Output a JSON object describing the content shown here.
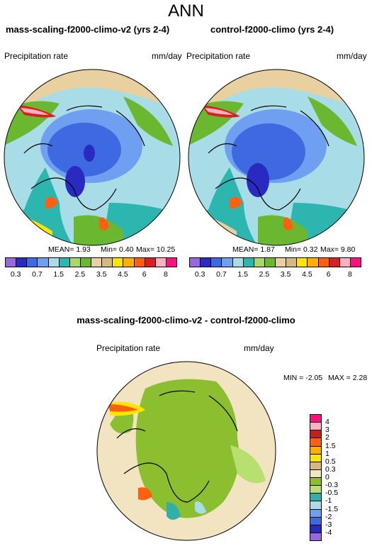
{
  "figure": {
    "title": "ANN"
  },
  "panels": [
    {
      "title": "mass-scaling-f2000-climo-v2 (yrs 2-4)",
      "variable": "Precipitation rate",
      "units": "mm/day",
      "stats": {
        "mean": "MEAN=  1.93",
        "min": "Min=  0.40",
        "max": "Max=  10.25"
      }
    },
    {
      "title": "control-f2000-climo (yrs 2-4)",
      "variable": "Precipitation rate",
      "units": "mm/day",
      "stats": {
        "mean": "MEAN=  1.87",
        "min": "Min=  0.32",
        "max": "Max=  9.80"
      }
    },
    {
      "title": "mass-scaling-f2000-climo-v2 - control-f2000-climo",
      "variable": "Precipitation rate",
      "units": "mm/day",
      "stats": {
        "min": "MIN = -2.05",
        "max": "MAX =  2.28"
      }
    }
  ],
  "chart_data": [
    {
      "type": "heatmap",
      "projection": "north-polar-stereographic",
      "title": "mass-scaling-f2000-climo-v2 (yrs 2-4)",
      "variable": "Precipitation rate",
      "units": "mm/day",
      "mean": 1.93,
      "min": 0.4,
      "max": 10.25,
      "colorbar_levels": [
        "0.3",
        "0.7",
        "1.5",
        "2.5",
        "3.5",
        "4.5",
        "6",
        "8"
      ],
      "colorbar_colors": [
        "#9966dd",
        "#2a2ac0",
        "#3d6ae0",
        "#6f9ff0",
        "#a8dde8",
        "#2db5b0",
        "#a8d868",
        "#6bb830",
        "#e8d0a0",
        "#d4b880",
        "#ffe600",
        "#ffb000",
        "#ff6010",
        "#d82020",
        "#ffb0c0",
        "#ff1080"
      ],
      "legend_position": "bottom"
    },
    {
      "type": "heatmap",
      "projection": "north-polar-stereographic",
      "title": "control-f2000-climo (yrs 2-4)",
      "variable": "Precipitation rate",
      "units": "mm/day",
      "mean": 1.87,
      "min": 0.32,
      "max": 9.8,
      "colorbar_levels": [
        "0.3",
        "0.7",
        "1.5",
        "2.5",
        "3.5",
        "4.5",
        "6",
        "8"
      ],
      "legend_position": "bottom"
    },
    {
      "type": "heatmap",
      "projection": "north-polar-stereographic",
      "title": "mass-scaling-f2000-climo-v2 - control-f2000-climo",
      "variable": "Precipitation rate",
      "units": "mm/day",
      "min": -2.05,
      "max": 2.28,
      "colorbar_levels": [
        "4",
        "3",
        "2",
        "1.5",
        "1",
        "0.5",
        "0.3",
        "0",
        "-0.3",
        "-0.5",
        "-1",
        "-1.5",
        "-2",
        "-3",
        "-4"
      ],
      "colorbar_colors": [
        "#ff1080",
        "#ffb0c0",
        "#c02020",
        "#ff6010",
        "#ffb000",
        "#ffe600",
        "#d4b880",
        "#f2e4c0",
        "#8cbf30",
        "#b8e070",
        "#30b0a8",
        "#a8dde8",
        "#6f9ff0",
        "#3d6ae0",
        "#2a2ac0",
        "#9966dd"
      ],
      "legend_position": "right"
    }
  ]
}
